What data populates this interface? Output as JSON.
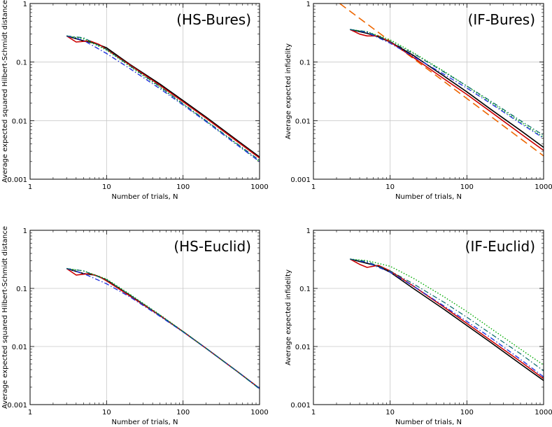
{
  "chart_data": [
    {
      "type": "line",
      "title": "(HS-Bures)",
      "xlabel": "Number of trials, N",
      "ylabel": "Average expected squared Hilbert-Schmidt distance",
      "xscale": "log",
      "yscale": "log",
      "xlim": [
        1,
        1000
      ],
      "ylim": [
        0.001,
        1
      ],
      "xticks": [
        "1",
        "10",
        "100",
        "1000"
      ],
      "yticks": [
        "0.001",
        "0.01",
        "0.1",
        "1"
      ],
      "grid": true,
      "series": [
        {
          "color": "#000000",
          "dash": "solid",
          "width": 1.6,
          "x": [
            3,
            5,
            7,
            10,
            20,
            50,
            100,
            200,
            500,
            1000
          ],
          "y": [
            0.28,
            0.23,
            0.21,
            0.175,
            0.092,
            0.042,
            0.022,
            0.0115,
            0.0047,
            0.0024
          ]
        },
        {
          "color": "#cc0000",
          "dash": "solid",
          "width": 1.6,
          "x": [
            3,
            4,
            6,
            8,
            10,
            20,
            50,
            100,
            200,
            500,
            1000
          ],
          "y": [
            0.28,
            0.22,
            0.23,
            0.2,
            0.165,
            0.09,
            0.04,
            0.021,
            0.011,
            0.0045,
            0.0023
          ]
        },
        {
          "color": "#00aa00",
          "dash": "dotted",
          "width": 1.4,
          "x": [
            3,
            5,
            10,
            20,
            50,
            100,
            200,
            500,
            1000
          ],
          "y": [
            0.28,
            0.25,
            0.16,
            0.085,
            0.037,
            0.019,
            0.0098,
            0.004,
            0.002
          ]
        },
        {
          "color": "#2233dd",
          "dash": "dashdot",
          "width": 1.4,
          "x": [
            3,
            5,
            10,
            20,
            50,
            100,
            200,
            500,
            1000
          ],
          "y": [
            0.28,
            0.235,
            0.14,
            0.078,
            0.035,
            0.0185,
            0.0096,
            0.0039,
            0.002
          ]
        },
        {
          "color": "#006666",
          "dash": "dashdot",
          "width": 1.2,
          "x": [
            3,
            5,
            10,
            20,
            50,
            100,
            200,
            500,
            1000
          ],
          "y": [
            0.28,
            0.26,
            0.165,
            0.087,
            0.038,
            0.0195,
            0.01,
            0.0041,
            0.0021
          ]
        }
      ]
    },
    {
      "type": "line",
      "title": "(IF-Bures)",
      "xlabel": "Number of trials, N",
      "ylabel": "Average expected infidelity",
      "xscale": "log",
      "yscale": "log",
      "xlim": [
        1,
        1000
      ],
      "ylim": [
        0.001,
        1
      ],
      "xticks": [
        "1",
        "10",
        "100",
        "1000"
      ],
      "yticks": [
        "0.001",
        "0.01",
        "0.1",
        "1"
      ],
      "grid": true,
      "series": [
        {
          "color": "#ee6600",
          "dash": "longdash",
          "width": 1.6,
          "x": [
            2.2,
            1000
          ],
          "y": [
            1.0,
            0.0025
          ]
        },
        {
          "color": "#000000",
          "dash": "solid",
          "width": 1.6,
          "x": [
            3,
            5,
            7,
            10,
            20,
            50,
            100,
            200,
            500,
            1000
          ],
          "y": [
            0.36,
            0.31,
            0.27,
            0.22,
            0.13,
            0.058,
            0.031,
            0.016,
            0.0068,
            0.0035
          ]
        },
        {
          "color": "#cc0000",
          "dash": "solid",
          "width": 1.6,
          "x": [
            3,
            4,
            5,
            7,
            10,
            20,
            50,
            100,
            200,
            500,
            1000
          ],
          "y": [
            0.36,
            0.3,
            0.28,
            0.28,
            0.22,
            0.12,
            0.052,
            0.028,
            0.0145,
            0.006,
            0.0031
          ]
        },
        {
          "color": "#00aa00",
          "dash": "dotted",
          "width": 1.4,
          "x": [
            3,
            5,
            10,
            20,
            50,
            100,
            200,
            500,
            1000
          ],
          "y": [
            0.36,
            0.33,
            0.24,
            0.145,
            0.07,
            0.039,
            0.021,
            0.0095,
            0.0052
          ]
        },
        {
          "color": "#2233dd",
          "dash": "dashdot",
          "width": 1.4,
          "x": [
            3,
            5,
            10,
            20,
            50,
            100,
            200,
            500,
            1000
          ],
          "y": [
            0.36,
            0.32,
            0.21,
            0.125,
            0.062,
            0.036,
            0.02,
            0.009,
            0.005
          ]
        },
        {
          "color": "#006666",
          "dash": "dashdot",
          "width": 1.2,
          "x": [
            3,
            5,
            10,
            20,
            50,
            100,
            200,
            500,
            1000
          ],
          "y": [
            0.36,
            0.33,
            0.225,
            0.14,
            0.068,
            0.039,
            0.022,
            0.01,
            0.0056
          ]
        }
      ]
    },
    {
      "type": "line",
      "title": "(HS-Euclid)",
      "xlabel": "Number of trials, N",
      "ylabel": "Average expected squared Hilbert-Schmidt distance",
      "xscale": "log",
      "yscale": "log",
      "xlim": [
        1,
        1000
      ],
      "ylim": [
        0.001,
        1
      ],
      "xticks": [
        "1",
        "10",
        "100",
        "1000"
      ],
      "yticks": [
        "0.001",
        "0.01",
        "0.1",
        "1"
      ],
      "grid": true,
      "series": [
        {
          "color": "#000000",
          "dash": "solid",
          "width": 1.6,
          "x": [
            3,
            5,
            7,
            10,
            20,
            50,
            100,
            200,
            500,
            1000
          ],
          "y": [
            0.22,
            0.18,
            0.17,
            0.14,
            0.077,
            0.034,
            0.018,
            0.0093,
            0.0038,
            0.0019
          ]
        },
        {
          "color": "#cc0000",
          "dash": "solid",
          "width": 1.6,
          "x": [
            3,
            4,
            6,
            8,
            10,
            20,
            50,
            100,
            200,
            500,
            1000
          ],
          "y": [
            0.22,
            0.17,
            0.18,
            0.16,
            0.135,
            0.075,
            0.034,
            0.018,
            0.0093,
            0.0038,
            0.0019
          ]
        },
        {
          "color": "#00aa00",
          "dash": "dotted",
          "width": 1.4,
          "x": [
            3,
            5,
            10,
            20,
            50,
            100,
            200,
            500,
            1000
          ],
          "y": [
            0.22,
            0.2,
            0.145,
            0.08,
            0.035,
            0.0182,
            0.0093,
            0.0038,
            0.0019
          ]
        },
        {
          "color": "#2233dd",
          "dash": "dashdot",
          "width": 1.4,
          "x": [
            3,
            5,
            10,
            20,
            50,
            100,
            200,
            500,
            1000
          ],
          "y": [
            0.22,
            0.18,
            0.12,
            0.072,
            0.033,
            0.0178,
            0.0093,
            0.0038,
            0.0019
          ]
        },
        {
          "color": "#006666",
          "dash": "dashdot",
          "width": 1.2,
          "x": [
            3,
            5,
            10,
            20,
            50,
            100,
            200,
            500,
            1000
          ],
          "y": [
            0.22,
            0.2,
            0.14,
            0.078,
            0.0345,
            0.018,
            0.0093,
            0.0038,
            0.00185
          ]
        }
      ]
    },
    {
      "type": "line",
      "title": "(IF-Euclid)",
      "xlabel": "Number of trials, N",
      "ylabel": "Average expected infidelity",
      "xscale": "log",
      "yscale": "log",
      "xlim": [
        1,
        1000
      ],
      "ylim": [
        0.001,
        1
      ],
      "xticks": [
        "1",
        "10",
        "100",
        "1000"
      ],
      "yticks": [
        "0.001",
        "0.01",
        "0.1",
        "1"
      ],
      "grid": true,
      "series": [
        {
          "color": "#000000",
          "dash": "solid",
          "width": 1.6,
          "x": [
            3,
            5,
            7,
            10,
            20,
            50,
            100,
            200,
            500,
            1000
          ],
          "y": [
            0.32,
            0.27,
            0.24,
            0.19,
            0.1,
            0.044,
            0.023,
            0.012,
            0.005,
            0.0026
          ]
        },
        {
          "color": "#cc0000",
          "dash": "solid",
          "width": 1.6,
          "x": [
            3,
            4,
            5,
            7,
            10,
            20,
            50,
            100,
            200,
            500,
            1000
          ],
          "y": [
            0.32,
            0.26,
            0.23,
            0.25,
            0.2,
            0.11,
            0.048,
            0.025,
            0.013,
            0.0055,
            0.0028
          ]
        },
        {
          "color": "#00aa00",
          "dash": "dotted",
          "width": 1.4,
          "x": [
            3,
            5,
            10,
            20,
            50,
            100,
            200,
            500,
            1000
          ],
          "y": [
            0.32,
            0.3,
            0.24,
            0.15,
            0.072,
            0.04,
            0.021,
            0.009,
            0.0048
          ]
        },
        {
          "color": "#2233dd",
          "dash": "dashdot",
          "width": 1.4,
          "x": [
            3,
            5,
            10,
            20,
            50,
            100,
            200,
            500,
            1000
          ],
          "y": [
            0.32,
            0.28,
            0.19,
            0.11,
            0.05,
            0.027,
            0.0145,
            0.006,
            0.003
          ]
        },
        {
          "color": "#006666",
          "dash": "dashdot",
          "width": 1.2,
          "x": [
            3,
            5,
            10,
            20,
            50,
            100,
            200,
            500,
            1000
          ],
          "y": [
            0.32,
            0.29,
            0.2,
            0.12,
            0.058,
            0.032,
            0.017,
            0.0075,
            0.0038
          ]
        }
      ]
    }
  ]
}
